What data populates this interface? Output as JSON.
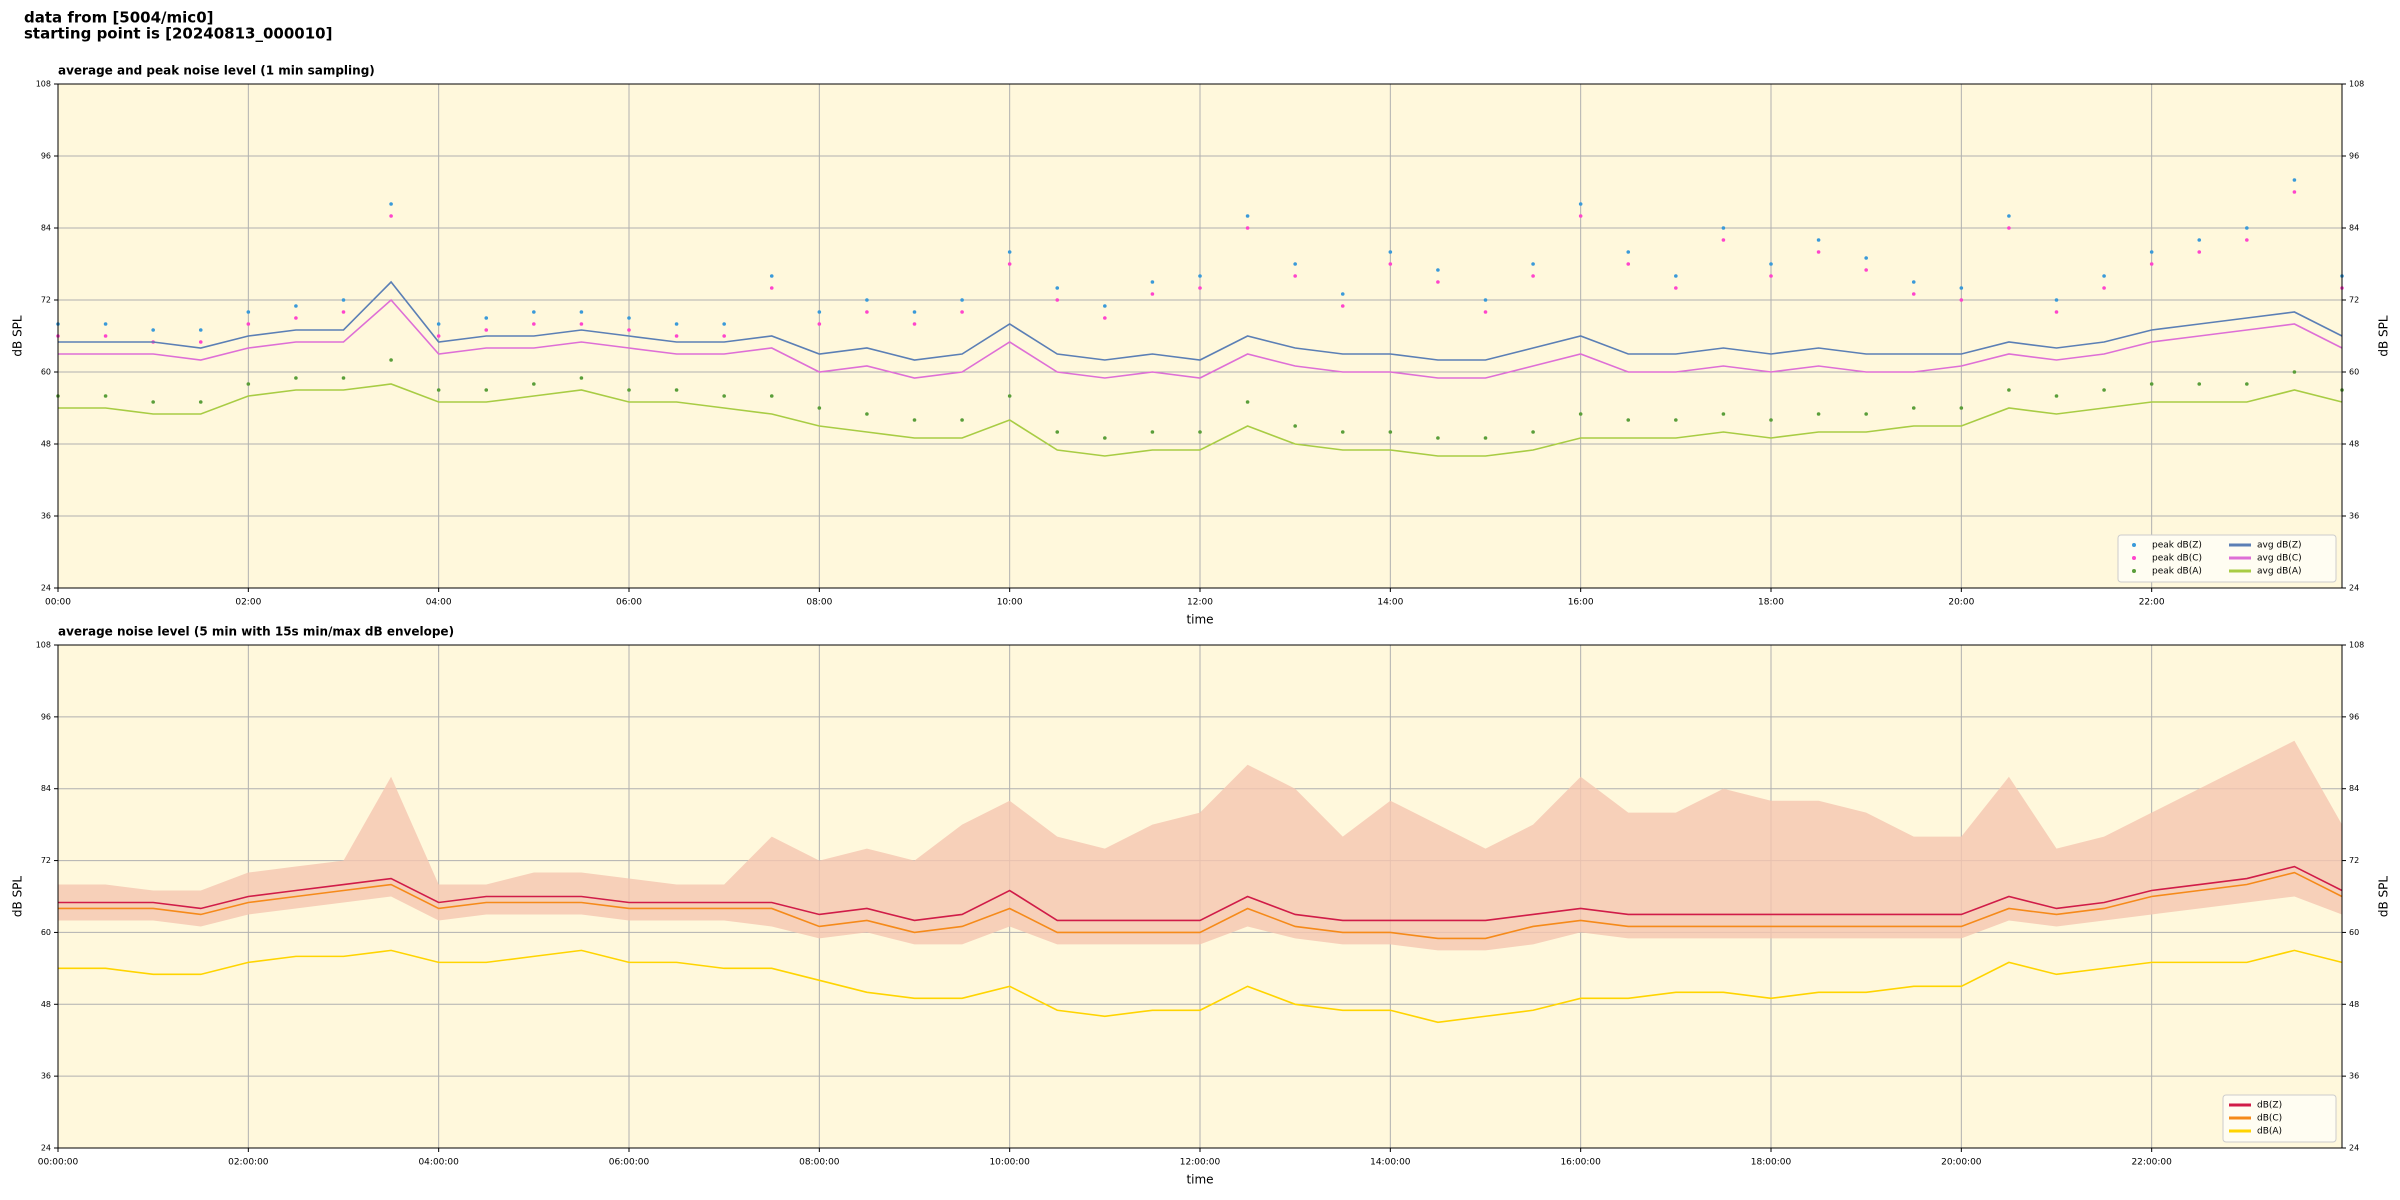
{
  "header": {
    "lines": [
      "data from [5004/mic0]",
      "starting point is [20240813_000010]"
    ]
  },
  "chart_data": [
    {
      "type": "line",
      "title": "average and peak noise level (1 min sampling)",
      "xlabel": "time",
      "ylabel": "dB SPL",
      "xlim": [
        0,
        24
      ],
      "ylim": [
        24,
        108
      ],
      "xticks": [
        {
          "value": 0,
          "label": "00:00"
        },
        {
          "value": 2,
          "label": "02:00"
        },
        {
          "value": 4,
          "label": "04:00"
        },
        {
          "value": 6,
          "label": "06:00"
        },
        {
          "value": 8,
          "label": "08:00"
        },
        {
          "value": 10,
          "label": "10:00"
        },
        {
          "value": 12,
          "label": "12:00"
        },
        {
          "value": 14,
          "label": "14:00"
        },
        {
          "value": 16,
          "label": "16:00"
        },
        {
          "value": 18,
          "label": "18:00"
        },
        {
          "value": 20,
          "label": "20:00"
        },
        {
          "value": 22,
          "label": "22:00"
        }
      ],
      "yticks": [
        24,
        36,
        48,
        60,
        72,
        84,
        96,
        108
      ],
      "grid": true,
      "background": "#fff8dc",
      "legend": {
        "loc": "lower right",
        "ncol": 2
      },
      "x": [
        0,
        0.5,
        1,
        1.5,
        2,
        2.5,
        3,
        3.5,
        4,
        4.5,
        5,
        5.5,
        6,
        6.5,
        7,
        7.5,
        8,
        8.5,
        9,
        9.5,
        10,
        10.5,
        11,
        11.5,
        12,
        12.5,
        13,
        13.5,
        14,
        14.5,
        15,
        15.5,
        16,
        16.5,
        17,
        17.5,
        18,
        18.5,
        19,
        19.5,
        20,
        20.5,
        21,
        21.5,
        22,
        22.5,
        23,
        23.5,
        24
      ],
      "series": [
        {
          "name": "peak dB(Z)",
          "mode": "markers",
          "color": "#3a9ad9",
          "values": [
            68,
            68,
            67,
            67,
            70,
            71,
            72,
            88,
            68,
            69,
            70,
            70,
            69,
            68,
            68,
            76,
            70,
            72,
            70,
            72,
            80,
            74,
            71,
            75,
            76,
            86,
            78,
            73,
            80,
            77,
            72,
            78,
            88,
            80,
            76,
            84,
            78,
            82,
            79,
            75,
            74,
            86,
            72,
            76,
            80,
            82,
            84,
            92,
            76
          ]
        },
        {
          "name": "peak dB(C)",
          "mode": "markers",
          "color": "#ff44cc",
          "values": [
            66,
            66,
            65,
            65,
            68,
            69,
            70,
            86,
            66,
            67,
            68,
            68,
            67,
            66,
            66,
            74,
            68,
            70,
            68,
            70,
            78,
            72,
            69,
            73,
            74,
            84,
            76,
            71,
            78,
            75,
            70,
            76,
            86,
            78,
            74,
            82,
            76,
            80,
            77,
            73,
            72,
            84,
            70,
            74,
            78,
            80,
            82,
            90,
            74
          ]
        },
        {
          "name": "peak dB(A)",
          "mode": "markers",
          "color": "#5a9e3a",
          "values": [
            56,
            56,
            55,
            55,
            58,
            59,
            59,
            62,
            57,
            57,
            58,
            59,
            57,
            57,
            56,
            56,
            54,
            53,
            52,
            52,
            56,
            50,
            49,
            50,
            50,
            55,
            51,
            50,
            50,
            49,
            49,
            50,
            53,
            52,
            52,
            53,
            52,
            53,
            53,
            54,
            54,
            57,
            56,
            57,
            58,
            58,
            58,
            60,
            57
          ]
        },
        {
          "name": "avg dB(Z)",
          "mode": "lines",
          "color": "#5b7fb5",
          "values": [
            65,
            65,
            65,
            64,
            66,
            67,
            67,
            75,
            65,
            66,
            66,
            67,
            66,
            65,
            65,
            66,
            63,
            64,
            62,
            63,
            68,
            63,
            62,
            63,
            62,
            66,
            64,
            63,
            63,
            62,
            62,
            64,
            66,
            63,
            63,
            64,
            63,
            64,
            63,
            63,
            63,
            65,
            64,
            65,
            67,
            68,
            69,
            70,
            66
          ]
        },
        {
          "name": "avg dB(C)",
          "mode": "lines",
          "color": "#de6fd6",
          "values": [
            63,
            63,
            63,
            62,
            64,
            65,
            65,
            72,
            63,
            64,
            64,
            65,
            64,
            63,
            63,
            64,
            60,
            61,
            59,
            60,
            65,
            60,
            59,
            60,
            59,
            63,
            61,
            60,
            60,
            59,
            59,
            61,
            63,
            60,
            60,
            61,
            60,
            61,
            60,
            60,
            61,
            63,
            62,
            63,
            65,
            66,
            67,
            68,
            64
          ]
        },
        {
          "name": "avg dB(A)",
          "mode": "lines",
          "color": "#a8cc44",
          "values": [
            54,
            54,
            53,
            53,
            56,
            57,
            57,
            58,
            55,
            55,
            56,
            57,
            55,
            55,
            54,
            53,
            51,
            50,
            49,
            49,
            52,
            47,
            46,
            47,
            47,
            51,
            48,
            47,
            47,
            46,
            46,
            47,
            49,
            49,
            49,
            50,
            49,
            50,
            50,
            51,
            51,
            54,
            53,
            54,
            55,
            55,
            55,
            57,
            55
          ]
        }
      ]
    },
    {
      "type": "line",
      "title": "average noise level (5 min with 15s min/max dB envelope)",
      "xlabel": "time",
      "ylabel": "dB SPL",
      "xlim": [
        0,
        24
      ],
      "ylim": [
        24,
        108
      ],
      "xticks": [
        {
          "value": 0,
          "label": "00:00:00"
        },
        {
          "value": 2,
          "label": "02:00:00"
        },
        {
          "value": 4,
          "label": "04:00:00"
        },
        {
          "value": 6,
          "label": "06:00:00"
        },
        {
          "value": 8,
          "label": "08:00:00"
        },
        {
          "value": 10,
          "label": "10:00:00"
        },
        {
          "value": 12,
          "label": "12:00:00"
        },
        {
          "value": 14,
          "label": "14:00:00"
        },
        {
          "value": 16,
          "label": "16:00:00"
        },
        {
          "value": 18,
          "label": "18:00:00"
        },
        {
          "value": 20,
          "label": "20:00:00"
        },
        {
          "value": 22,
          "label": "22:00:00"
        }
      ],
      "yticks": [
        24,
        36,
        48,
        60,
        72,
        84,
        96,
        108
      ],
      "grid": true,
      "background": "#fff8dc",
      "legend": {
        "loc": "lower right",
        "ncol": 1
      },
      "x": [
        0,
        0.5,
        1,
        1.5,
        2,
        2.5,
        3,
        3.5,
        4,
        4.5,
        5,
        5.5,
        6,
        6.5,
        7,
        7.5,
        8,
        8.5,
        9,
        9.5,
        10,
        10.5,
        11,
        11.5,
        12,
        12.5,
        13,
        13.5,
        14,
        14.5,
        15,
        15.5,
        16,
        16.5,
        17,
        17.5,
        18,
        18.5,
        19,
        19.5,
        20,
        20.5,
        21,
        21.5,
        22,
        22.5,
        23,
        23.5,
        24
      ],
      "envelope": {
        "color": "#f5c6b0",
        "low": [
          62,
          62,
          62,
          61,
          63,
          64,
          65,
          66,
          62,
          63,
          63,
          63,
          62,
          62,
          62,
          61,
          59,
          60,
          58,
          58,
          61,
          58,
          58,
          58,
          58,
          61,
          59,
          58,
          58,
          57,
          57,
          58,
          60,
          59,
          59,
          59,
          59,
          59,
          59,
          59,
          59,
          62,
          61,
          62,
          63,
          64,
          65,
          66,
          63
        ],
        "high": [
          68,
          68,
          67,
          67,
          70,
          71,
          72,
          86,
          68,
          68,
          70,
          70,
          69,
          68,
          68,
          76,
          72,
          74,
          72,
          78,
          82,
          76,
          74,
          78,
          80,
          88,
          84,
          76,
          82,
          78,
          74,
          78,
          86,
          80,
          80,
          84,
          82,
          82,
          80,
          76,
          76,
          86,
          74,
          76,
          80,
          84,
          88,
          92,
          78
        ]
      },
      "series": [
        {
          "name": "dB(Z)",
          "mode": "lines",
          "color": "#d01c48",
          "values": [
            65,
            65,
            65,
            64,
            66,
            67,
            68,
            69,
            65,
            66,
            66,
            66,
            65,
            65,
            65,
            65,
            63,
            64,
            62,
            63,
            67,
            62,
            62,
            62,
            62,
            66,
            63,
            62,
            62,
            62,
            62,
            63,
            64,
            63,
            63,
            63,
            63,
            63,
            63,
            63,
            63,
            66,
            64,
            65,
            67,
            68,
            69,
            71,
            67
          ]
        },
        {
          "name": "dB(C)",
          "mode": "lines",
          "color": "#f58a1a",
          "values": [
            64,
            64,
            64,
            63,
            65,
            66,
            67,
            68,
            64,
            65,
            65,
            65,
            64,
            64,
            64,
            64,
            61,
            62,
            60,
            61,
            64,
            60,
            60,
            60,
            60,
            64,
            61,
            60,
            60,
            59,
            59,
            61,
            62,
            61,
            61,
            61,
            61,
            61,
            61,
            61,
            61,
            64,
            63,
            64,
            66,
            67,
            68,
            70,
            66
          ]
        },
        {
          "name": "dB(A)",
          "mode": "lines",
          "color": "#ffd400",
          "values": [
            54,
            54,
            53,
            53,
            55,
            56,
            56,
            57,
            55,
            55,
            56,
            57,
            55,
            55,
            54,
            54,
            52,
            50,
            49,
            49,
            51,
            47,
            46,
            47,
            47,
            51,
            48,
            47,
            47,
            45,
            46,
            47,
            49,
            49,
            50,
            50,
            49,
            50,
            50,
            51,
            51,
            55,
            53,
            54,
            55,
            55,
            55,
            57,
            55
          ]
        }
      ]
    }
  ]
}
